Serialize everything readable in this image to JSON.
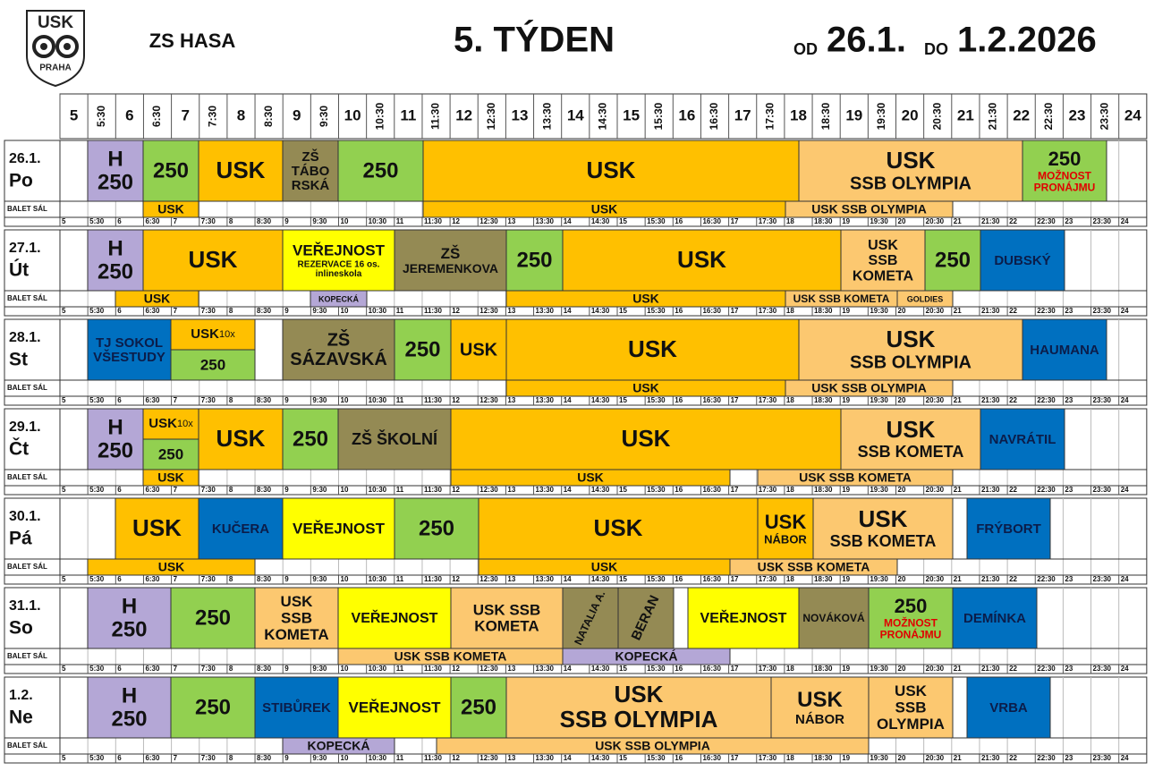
{
  "logo": {
    "top": "USK",
    "bottom": "PRAHA"
  },
  "header": {
    "venue": "ZS HASA",
    "week": "5. TÝDEN",
    "from_label": "OD",
    "from": "26.1.",
    "to_label": "DO",
    "to": "1.2.2026"
  },
  "times": [
    "5",
    "5:30",
    "6",
    "6:30",
    "7",
    "7:30",
    "8",
    "8:30",
    "9",
    "9:30",
    "10",
    "10:30",
    "11",
    "11:30",
    "12",
    "12:30",
    "13",
    "13:30",
    "14",
    "14:30",
    "15",
    "15:30",
    "16",
    "16:30",
    "17",
    "17:30",
    "18",
    "18:30",
    "19",
    "19:30",
    "20",
    "20:30",
    "21",
    "21:30",
    "22",
    "22:30",
    "23",
    "23:30",
    "24"
  ],
  "balet_label": "BALET SÁL",
  "days": [
    {
      "date": "26.1.",
      "day": "Po",
      "events": [
        {
          "lines": [
            "H",
            "250"
          ]
        },
        {
          "lines": [
            "250"
          ]
        },
        {
          "lines": [
            "USK"
          ]
        },
        {
          "lines": [
            "ZŠ",
            "TÁBO",
            "RSKÁ"
          ]
        },
        {
          "lines": [
            "250"
          ]
        },
        {
          "lines": [
            "USK"
          ]
        },
        {
          "lines": [
            "USK",
            "SSB OLYMPIA"
          ]
        },
        {
          "lines": [
            "250",
            "MOŽNOST",
            "PRONÁJMU"
          ]
        }
      ],
      "balet": [
        {
          "lines": [
            "USK"
          ]
        },
        {
          "lines": [
            "USK"
          ]
        },
        {
          "lines": [
            "USK SSB OLYMPIA"
          ]
        }
      ]
    },
    {
      "date": "27.1.",
      "day": "Út",
      "events": [
        {
          "lines": [
            "H",
            "250"
          ]
        },
        {
          "lines": [
            "USK"
          ]
        },
        {
          "lines": [
            "VEŘEJNOST",
            "REZERVACE 16 os.",
            "inlineskola"
          ]
        },
        {
          "lines": [
            "ZŠ",
            "JEREMENKOVA"
          ]
        },
        {
          "lines": [
            "250"
          ]
        },
        {
          "lines": [
            "USK"
          ]
        },
        {
          "lines": [
            "USK",
            "SSB",
            "KOMETA"
          ]
        },
        {
          "lines": [
            "250"
          ]
        },
        {
          "lines": [
            "DUBSKÝ"
          ]
        }
      ],
      "balet": [
        {
          "lines": [
            "USK"
          ]
        },
        {
          "lines": [
            "KOPECKÁ"
          ]
        },
        {
          "lines": [
            "USK"
          ]
        },
        {
          "lines": [
            "USK SSB KOMETA"
          ]
        },
        {
          "lines": [
            "GOLDIES"
          ]
        }
      ]
    },
    {
      "date": "28.1.",
      "day": "St",
      "events": [
        {
          "lines": [
            "TJ SOKOL",
            "VŠESTUDY"
          ]
        },
        {
          "lines": [
            "USK",
            "10x"
          ]
        },
        {
          "lines": [
            "250"
          ]
        },
        {
          "lines": [
            "ZŠ",
            "SÁZAVSKÁ"
          ]
        },
        {
          "lines": [
            "250"
          ]
        },
        {
          "lines": [
            "USK"
          ]
        },
        {
          "lines": [
            "USK"
          ]
        },
        {
          "lines": [
            "USK",
            "SSB OLYMPIA"
          ]
        },
        {
          "lines": [
            "HAUMANA"
          ]
        }
      ],
      "balet": [
        {
          "lines": [
            "USK"
          ]
        },
        {
          "lines": [
            "USK SSB OLYMPIA"
          ]
        }
      ]
    },
    {
      "date": "29.1.",
      "day": "Čt",
      "events": [
        {
          "lines": [
            "H",
            "250"
          ]
        },
        {
          "lines": [
            "USK",
            "10x"
          ]
        },
        {
          "lines": [
            "250"
          ]
        },
        {
          "lines": [
            "USK"
          ]
        },
        {
          "lines": [
            "250"
          ]
        },
        {
          "lines": [
            "ZŠ ŠKOLNÍ"
          ]
        },
        {
          "lines": [
            "USK"
          ]
        },
        {
          "lines": [
            "USK",
            "SSB KOMETA"
          ]
        },
        {
          "lines": [
            "NAVRÁTIL"
          ]
        }
      ],
      "balet": [
        {
          "lines": [
            "USK"
          ]
        },
        {
          "lines": [
            "USK"
          ]
        },
        {
          "lines": [
            "USK SSB KOMETA"
          ]
        }
      ]
    },
    {
      "date": "30.1.",
      "day": "Pá",
      "events": [
        {
          "lines": [
            "USK"
          ]
        },
        {
          "lines": [
            "KUČERA"
          ]
        },
        {
          "lines": [
            "VEŘEJNOST"
          ]
        },
        {
          "lines": [
            "250"
          ]
        },
        {
          "lines": [
            "USK"
          ]
        },
        {
          "lines": [
            "USK",
            "NÁBOR"
          ]
        },
        {
          "lines": [
            "USK",
            "SSB KOMETA"
          ]
        },
        {
          "lines": [
            "FRÝBORT"
          ]
        }
      ],
      "balet": [
        {
          "lines": [
            "USK"
          ]
        },
        {
          "lines": [
            "USK"
          ]
        },
        {
          "lines": [
            "USK SSB KOMETA"
          ]
        }
      ]
    },
    {
      "date": "31.1.",
      "day": "So",
      "events": [
        {
          "lines": [
            "H",
            "250"
          ]
        },
        {
          "lines": [
            "250"
          ]
        },
        {
          "lines": [
            "USK",
            "SSB",
            "KOMETA"
          ]
        },
        {
          "lines": [
            "VEŘEJNOST"
          ]
        },
        {
          "lines": [
            "USK SSB",
            "KOMETA"
          ]
        },
        {
          "lines": [
            "NATALIA A."
          ]
        },
        {
          "lines": [
            "BERAN"
          ]
        },
        {
          "lines": [
            "VEŘEJNOST"
          ]
        },
        {
          "lines": [
            "NOVÁKOVÁ"
          ]
        },
        {
          "lines": [
            "250",
            "MOŽNOST",
            "PRONÁJMU"
          ]
        },
        {
          "lines": [
            "DEMÍNKA"
          ]
        }
      ],
      "balet": [
        {
          "lines": [
            "USK SSB KOMETA"
          ]
        },
        {
          "lines": [
            "KOPECKÁ"
          ]
        }
      ]
    },
    {
      "date": "1.2.",
      "day": "Ne",
      "events": [
        {
          "lines": [
            "H",
            "250"
          ]
        },
        {
          "lines": [
            "250"
          ]
        },
        {
          "lines": [
            "STIBŮREK"
          ]
        },
        {
          "lines": [
            "VEŘEJNOST"
          ]
        },
        {
          "lines": [
            "250"
          ]
        },
        {
          "lines": [
            "USK",
            "SSB OLYMPIA"
          ]
        },
        {
          "lines": [
            "USK",
            "NÁBOR"
          ]
        },
        {
          "lines": [
            "USK",
            "SSB",
            "OLYMPIA"
          ]
        },
        {
          "lines": [
            "VRBA"
          ]
        }
      ],
      "balet": [
        {
          "lines": [
            "KOPECKÁ"
          ]
        },
        {
          "lines": [
            "USK SSB OLYMPIA"
          ]
        }
      ]
    }
  ]
}
